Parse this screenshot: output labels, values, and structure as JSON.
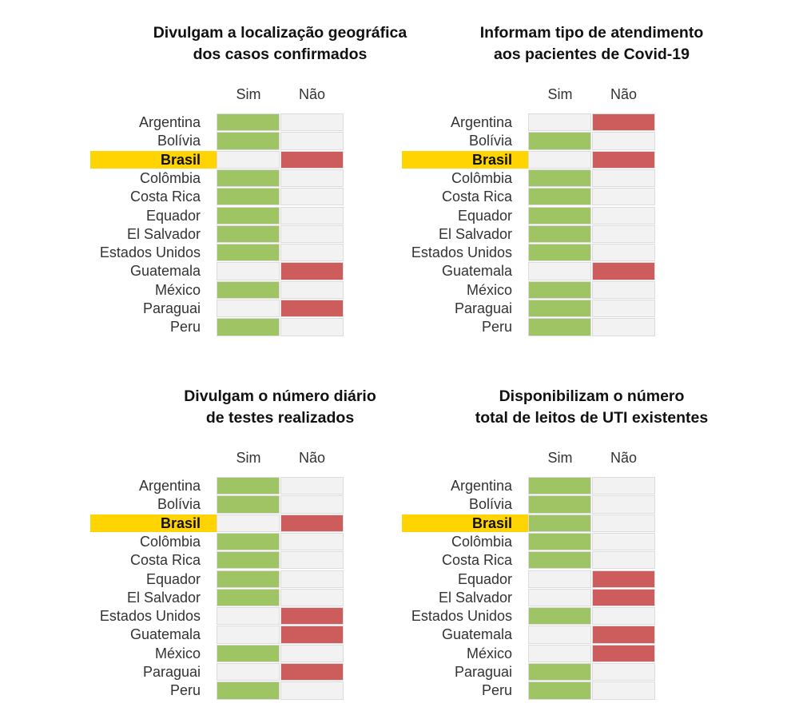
{
  "colors": {
    "yes": "#9fc463",
    "no": "#cd5c5c",
    "empty": "#f2f2f2",
    "highlight": "#ffd400"
  },
  "highlight_country": "Brasil",
  "chart_data": [
    {
      "type": "table",
      "title_lines": [
        "Divulgam a localização geográfica",
        "dos casos confirmados"
      ],
      "columns": [
        "Sim",
        "Não"
      ],
      "rows": [
        {
          "country": "Argentina",
          "value": "Sim"
        },
        {
          "country": "Bolívia",
          "value": "Sim"
        },
        {
          "country": "Brasil",
          "value": "Não"
        },
        {
          "country": "Colômbia",
          "value": "Sim"
        },
        {
          "country": "Costa Rica",
          "value": "Sim"
        },
        {
          "country": "Equador",
          "value": "Sim"
        },
        {
          "country": "El Salvador",
          "value": "Sim"
        },
        {
          "country": "Estados Unidos",
          "value": "Sim"
        },
        {
          "country": "Guatemala",
          "value": "Não"
        },
        {
          "country": "México",
          "value": "Sim"
        },
        {
          "country": "Paraguai",
          "value": "Não"
        },
        {
          "country": "Peru",
          "value": "Sim"
        }
      ]
    },
    {
      "type": "table",
      "title_lines": [
        "Informam tipo de atendimento",
        "aos pacientes de Covid-19"
      ],
      "columns": [
        "Sim",
        "Não"
      ],
      "rows": [
        {
          "country": "Argentina",
          "value": "Não"
        },
        {
          "country": "Bolívia",
          "value": "Sim"
        },
        {
          "country": "Brasil",
          "value": "Não"
        },
        {
          "country": "Colômbia",
          "value": "Sim"
        },
        {
          "country": "Costa Rica",
          "value": "Sim"
        },
        {
          "country": "Equador",
          "value": "Sim"
        },
        {
          "country": "El Salvador",
          "value": "Sim"
        },
        {
          "country": "Estados Unidos",
          "value": "Sim"
        },
        {
          "country": "Guatemala",
          "value": "Não"
        },
        {
          "country": "México",
          "value": "Sim"
        },
        {
          "country": "Paraguai",
          "value": "Sim"
        },
        {
          "country": "Peru",
          "value": "Sim"
        }
      ]
    },
    {
      "type": "table",
      "title_lines": [
        "Divulgam o número diário",
        "de testes realizados"
      ],
      "columns": [
        "Sim",
        "Não"
      ],
      "rows": [
        {
          "country": "Argentina",
          "value": "Sim"
        },
        {
          "country": "Bolívia",
          "value": "Sim"
        },
        {
          "country": "Brasil",
          "value": "Não"
        },
        {
          "country": "Colômbia",
          "value": "Sim"
        },
        {
          "country": "Costa Rica",
          "value": "Sim"
        },
        {
          "country": "Equador",
          "value": "Sim"
        },
        {
          "country": "El Salvador",
          "value": "Sim"
        },
        {
          "country": "Estados Unidos",
          "value": "Não"
        },
        {
          "country": "Guatemala",
          "value": "Não"
        },
        {
          "country": "México",
          "value": "Sim"
        },
        {
          "country": "Paraguai",
          "value": "Não"
        },
        {
          "country": "Peru",
          "value": "Sim"
        }
      ]
    },
    {
      "type": "table",
      "title_lines": [
        "Disponibilizam o número",
        "total de leitos de UTI existentes"
      ],
      "columns": [
        "Sim",
        "Não"
      ],
      "rows": [
        {
          "country": "Argentina",
          "value": "Sim"
        },
        {
          "country": "Bolívia",
          "value": "Sim"
        },
        {
          "country": "Brasil",
          "value": "Sim"
        },
        {
          "country": "Colômbia",
          "value": "Sim"
        },
        {
          "country": "Costa Rica",
          "value": "Sim"
        },
        {
          "country": "Equador",
          "value": "Não"
        },
        {
          "country": "El Salvador",
          "value": "Não"
        },
        {
          "country": "Estados Unidos",
          "value": "Sim"
        },
        {
          "country": "Guatemala",
          "value": "Não"
        },
        {
          "country": "México",
          "value": "Não"
        },
        {
          "country": "Paraguai",
          "value": "Sim"
        },
        {
          "country": "Peru",
          "value": "Sim"
        }
      ]
    }
  ]
}
